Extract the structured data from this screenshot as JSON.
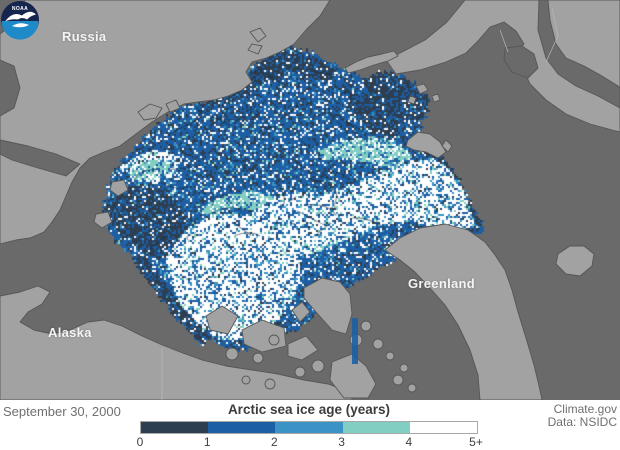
{
  "map": {
    "country_labels": [
      {
        "id": "russia",
        "text": "Russia"
      },
      {
        "id": "alaska",
        "text": "Alaska"
      },
      {
        "id": "greenland",
        "text": "Greenland"
      }
    ],
    "logo_text": "NOAA",
    "colors": {
      "ocean": "#6a6a6a",
      "land": "#a2a2a2",
      "coastline": "#565656",
      "country_border": "#b8b8b8",
      "logo_dark": "#16254d",
      "logo_light": "#1e8ac8"
    }
  },
  "legend": {
    "title": "Arctic sea ice age (years)",
    "tick_labels": [
      "0",
      "1",
      "2",
      "3",
      "4",
      "5+"
    ],
    "bin_colors": [
      "#2d3e50",
      "#1d5fa4",
      "#3a92c5",
      "#83cec2",
      "#ffffff"
    ]
  },
  "footer": {
    "date": "September 30, 2000",
    "credits": [
      "Climate.gov",
      "Data: NSIDC"
    ]
  },
  "chart_data": {
    "type": "heatmap",
    "title": "Arctic sea ice age (years)",
    "date_shown": "September 30, 2000",
    "variable": "Arctic sea ice age",
    "unit": "years",
    "scale_ticks": [
      "0",
      "1",
      "2",
      "3",
      "4",
      "5+"
    ],
    "bins": [
      {
        "range": "0-1",
        "color": "#2d3e50"
      },
      {
        "range": "1-2",
        "color": "#1d5fa4"
      },
      {
        "range": "2-3",
        "color": "#3a92c5"
      },
      {
        "range": "3-4",
        "color": "#83cec2"
      },
      {
        "range": "4-5+",
        "color": "#ffffff"
      }
    ],
    "legend_position": "bottom-center",
    "source_label": "Data: NSIDC",
    "publisher_label": "Climate.gov"
  }
}
